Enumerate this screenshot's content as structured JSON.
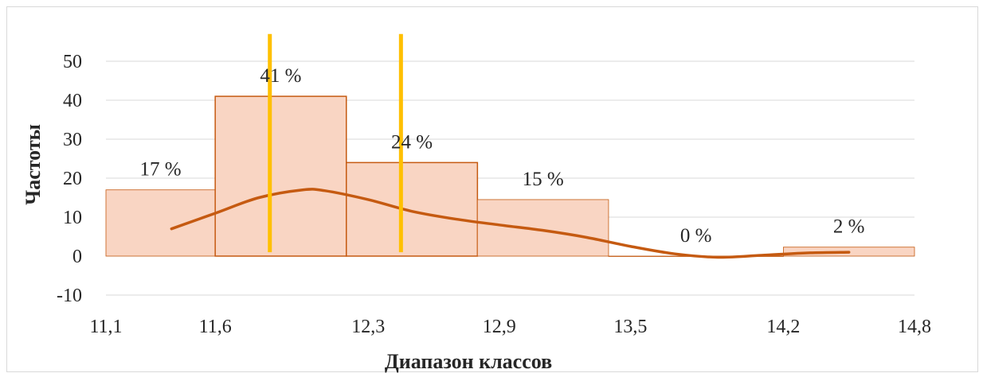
{
  "chart_data": {
    "type": "bar",
    "xlabel": "Диапазон классов",
    "ylabel": "Частоты",
    "ylim": [
      -10,
      55
    ],
    "yticks": [
      -10,
      0,
      10,
      20,
      30,
      40,
      50
    ],
    "ytick_labels": [
      "-10",
      "0",
      "10",
      "20",
      "30",
      "40",
      "50"
    ],
    "xlim": [
      11.1,
      14.8
    ],
    "xtick_values": [
      11.1,
      11.6,
      12.3,
      12.9,
      13.5,
      14.2,
      14.8
    ],
    "xtick_labels": [
      "11,1",
      "11,6",
      "12,3",
      "12,9",
      "13,5",
      "14,2",
      "14,8"
    ],
    "bins": [
      {
        "from": 11.1,
        "to": 11.6,
        "value": 17,
        "label": "17 %"
      },
      {
        "from": 11.6,
        "to": 12.2,
        "value": 41,
        "label": "41 %"
      },
      {
        "from": 12.2,
        "to": 12.8,
        "value": 24,
        "label": "24 %"
      },
      {
        "from": 12.8,
        "to": 13.4,
        "value": 14.5,
        "label": "15 %"
      },
      {
        "from": 13.4,
        "to": 14.2,
        "value": 0,
        "label": "0 %"
      },
      {
        "from": 14.2,
        "to": 14.8,
        "value": 2.3,
        "label": "2 %"
      }
    ],
    "highlighted_bins": [
      1,
      2
    ],
    "vertical_lines": [
      {
        "x": 11.85,
        "y_from": 1,
        "y_to": 57
      },
      {
        "x": 12.45,
        "y_from": 1,
        "y_to": 57
      }
    ],
    "density_curve": {
      "x": [
        11.4,
        11.6,
        11.8,
        12.0,
        12.1,
        12.3,
        12.5,
        12.7,
        12.9,
        13.1,
        13.3,
        13.5,
        13.7,
        13.9,
        14.1,
        14.3,
        14.5
      ],
      "y": [
        7,
        11,
        15,
        17,
        16.8,
        14.5,
        11.5,
        9.5,
        8,
        6.6,
        4.8,
        2.5,
        0.6,
        -0.3,
        0.2,
        0.8,
        1
      ]
    },
    "grid": true,
    "colors": {
      "bar_fill": "#f9d5c3",
      "bar_edge": "#c55a11",
      "highlight_edge": "#c55a11",
      "vertical_line": "#ffc000",
      "curve": "#c55a11",
      "grid": "#d9d9d9"
    }
  }
}
